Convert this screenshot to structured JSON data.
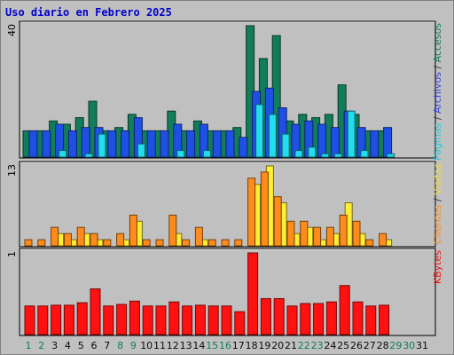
{
  "chart_data": {
    "title": "Uso diario en Febrero 2025",
    "type": "bar",
    "days": [
      "1",
      "2",
      "3",
      "4",
      "5",
      "6",
      "7",
      "8",
      "9",
      "10",
      "11",
      "12",
      "13",
      "14",
      "15",
      "16",
      "17",
      "18",
      "19",
      "20",
      "21",
      "22",
      "23",
      "24",
      "25",
      "26",
      "27",
      "28",
      "29",
      "30",
      "31"
    ],
    "weekend_days": [
      1,
      2,
      8,
      9,
      15,
      16,
      22,
      23,
      29,
      30
    ],
    "no_data_days": [
      29,
      30,
      31
    ],
    "panels": [
      {
        "id": "top",
        "scale_label": "40",
        "max": 40,
        "series": [
          {
            "name": "Accesos",
            "color": "#117d5a",
            "values": [
              8,
              8,
              11,
              10,
              12,
              17,
              8,
              9,
              13,
              8,
              8,
              14,
              8,
              11,
              8,
              8,
              9,
              40,
              30,
              37,
              11,
              13,
              12,
              13,
              22,
              13,
              8,
              8,
              null,
              null,
              null
            ]
          },
          {
            "name": "Archivos",
            "color": "#1e50e6",
            "values": [
              8,
              8,
              10,
              8,
              9,
              9,
              8,
              8,
              12,
              8,
              8,
              10,
              8,
              10,
              8,
              8,
              6,
              20,
              21,
              15,
              10,
              11,
              10,
              9,
              14,
              9,
              8,
              9,
              null,
              null,
              null
            ]
          },
          {
            "name": "Páginas",
            "color": "#22ddee",
            "values": [
              0,
              0,
              2,
              0,
              1,
              7,
              0,
              0,
              4,
              0,
              0,
              2,
              0,
              2,
              0,
              0,
              0,
              16,
              13,
              7,
              2,
              3,
              1,
              1,
              14,
              2,
              0,
              1,
              null,
              null,
              null
            ]
          }
        ]
      },
      {
        "id": "middle",
        "scale_label": "13",
        "max": 13,
        "series": [
          {
            "name": "Visitas",
            "color": "#ffee33",
            "values": [
              0,
              0,
              2,
              1,
              2,
              1,
              0,
              1,
              4,
              0,
              0,
              2,
              0,
              1,
              0,
              0,
              0,
              10,
              13,
              7,
              2,
              3,
              1,
              2,
              7,
              2,
              0,
              1,
              null,
              null,
              null
            ]
          },
          {
            "name": "Clientes",
            "color": "#ff8c1a",
            "values": [
              1,
              1,
              3,
              2,
              3,
              2,
              1,
              2,
              5,
              1,
              1,
              5,
              1,
              3,
              1,
              1,
              1,
              11,
              12,
              8,
              4,
              4,
              3,
              3,
              5,
              4,
              1,
              2,
              null,
              null,
              null
            ]
          }
        ]
      },
      {
        "id": "bottom",
        "scale_label": "1",
        "max": 1,
        "series": [
          {
            "name": "KBytes",
            "color": "#ff1111",
            "values": [
              0.35,
              0.35,
              0.36,
              0.36,
              0.39,
              0.56,
              0.35,
              0.37,
              0.41,
              0.35,
              0.35,
              0.4,
              0.35,
              0.36,
              0.35,
              0.35,
              0.28,
              1.0,
              0.44,
              0.44,
              0.35,
              0.38,
              0.38,
              0.4,
              0.6,
              0.4,
              0.35,
              0.36,
              null,
              null,
              null
            ]
          }
        ]
      }
    ],
    "legend": {
      "top": [
        {
          "text": "Páginas",
          "color": "#22ccdd"
        },
        {
          "text": "/",
          "color": "#333333"
        },
        {
          "text": "Archivos",
          "color": "#3344dd"
        },
        {
          "text": "/",
          "color": "#333333"
        },
        {
          "text": "Accesos",
          "color": "#117d5a"
        }
      ],
      "middle": [
        {
          "text": "Clientes",
          "color": "#ff8c1a"
        },
        {
          "text": "/",
          "color": "#333333"
        },
        {
          "text": "Visitas",
          "color": "#eedd33"
        }
      ],
      "bottom": [
        {
          "text": "KBytes",
          "color": "#ee1111"
        }
      ]
    },
    "colors": {
      "weekday_label": "#0a0a0a",
      "weekend_label": "#117d5a",
      "no_data_label": "#0a0a0a"
    }
  }
}
